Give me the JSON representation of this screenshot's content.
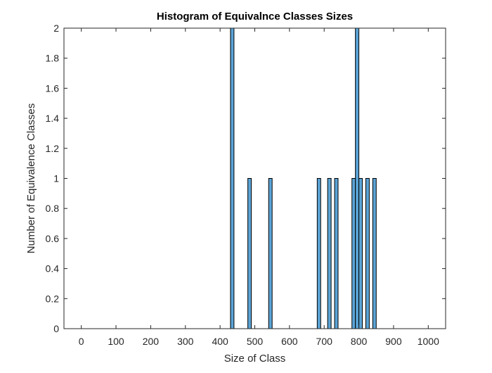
{
  "chart_data": {
    "type": "bar",
    "title": "Histogram of Equivalnce Classes Sizes",
    "xlabel": "Size of Class",
    "ylabel": "Number of Equivalence Classes",
    "xlim": [
      -50,
      1050
    ],
    "ylim": [
      0,
      2
    ],
    "x_ticks": [
      0,
      100,
      200,
      300,
      400,
      500,
      600,
      700,
      800,
      900,
      1000
    ],
    "x_tick_labels": [
      "0",
      "100",
      "200",
      "300",
      "400",
      "500",
      "600",
      "700",
      "800",
      "900",
      "1000"
    ],
    "y_ticks": [
      0,
      0.2,
      0.4,
      0.6,
      0.8,
      1,
      1.2,
      1.4,
      1.6,
      1.8,
      2
    ],
    "y_tick_labels": [
      "0",
      "0.2",
      "0.4",
      "0.6",
      "0.8",
      "1",
      "1.2",
      "1.4",
      "1.6",
      "1.8",
      "2"
    ],
    "bin_width": 10,
    "bins": [
      {
        "x": 435,
        "count": 2
      },
      {
        "x": 485,
        "count": 1
      },
      {
        "x": 545,
        "count": 1
      },
      {
        "x": 685,
        "count": 1
      },
      {
        "x": 715,
        "count": 1
      },
      {
        "x": 735,
        "count": 1
      },
      {
        "x": 785,
        "count": 1
      },
      {
        "x": 795,
        "count": 2
      },
      {
        "x": 805,
        "count": 1
      },
      {
        "x": 825,
        "count": 1
      },
      {
        "x": 845,
        "count": 1
      }
    ],
    "bar_color": "#5ba4d6",
    "edge_color": "#000000",
    "grid": false,
    "legend": "none",
    "box": true
  }
}
